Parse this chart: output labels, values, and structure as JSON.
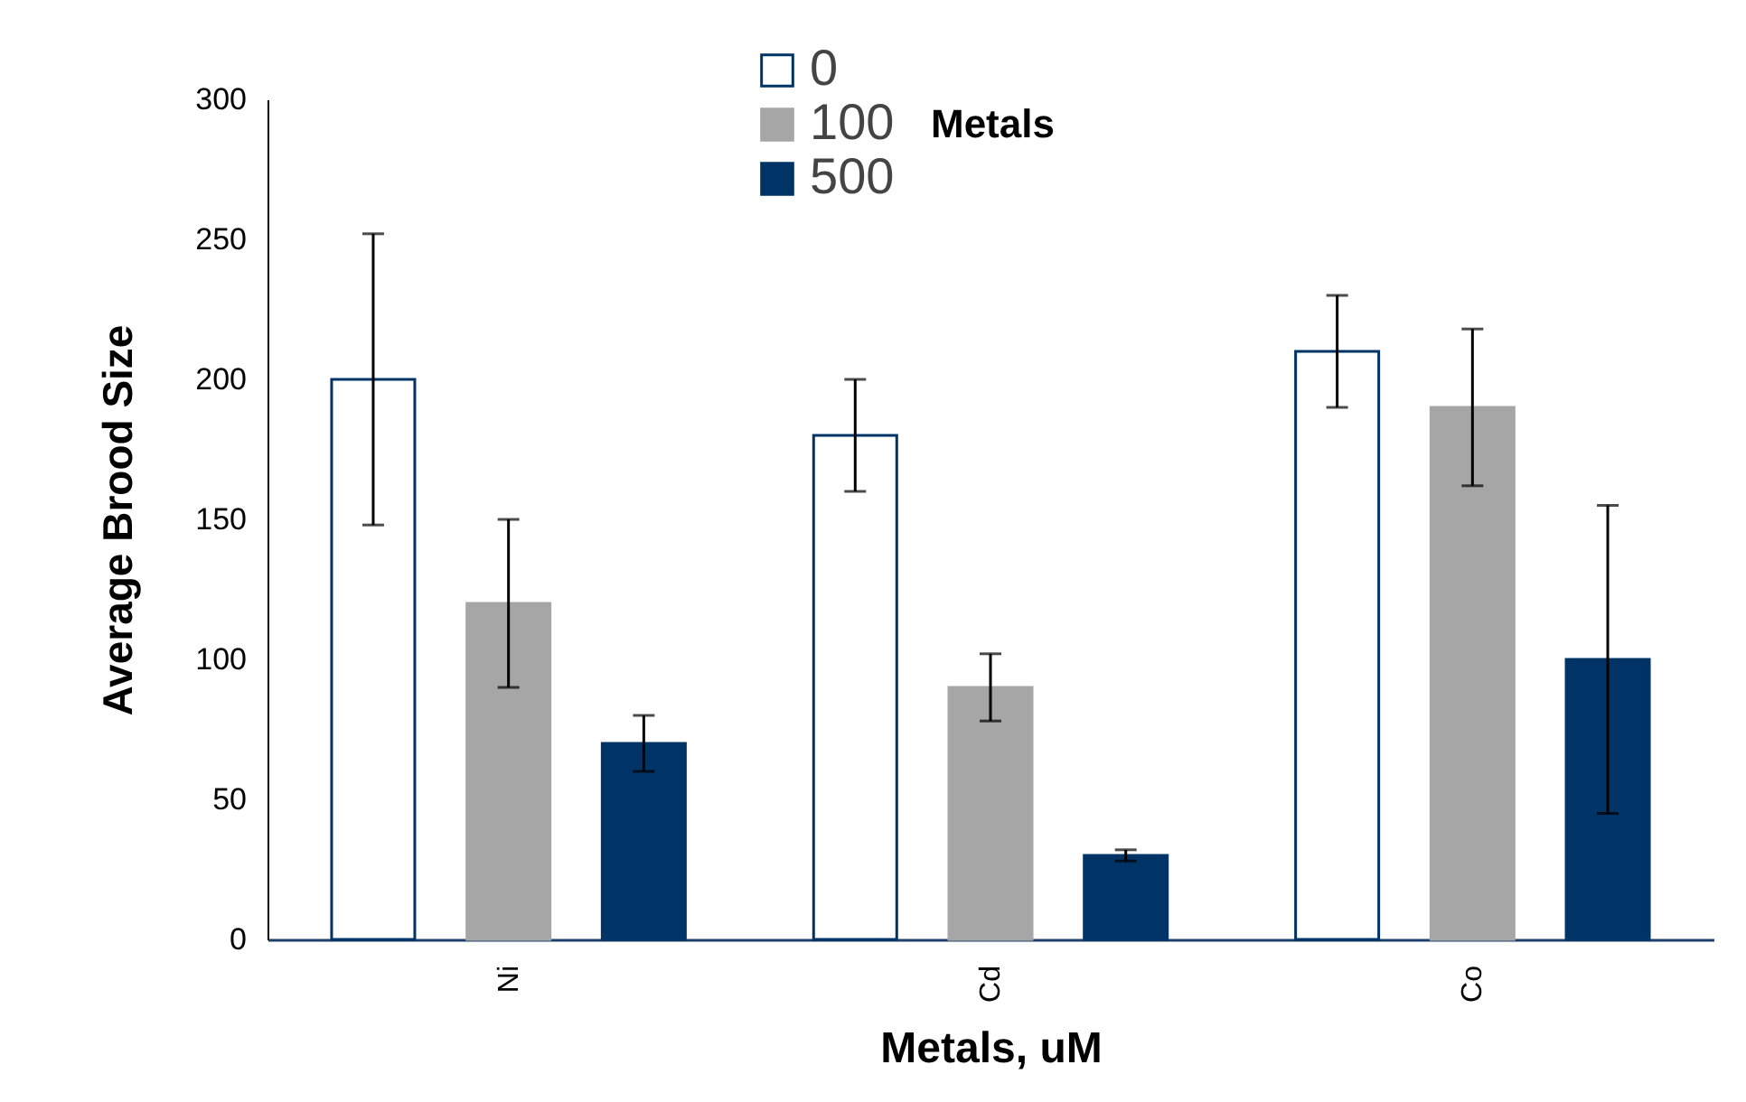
{
  "chart_data": {
    "type": "bar",
    "xlabel": "Metals, uM",
    "ylabel": "Average Brood Size",
    "legend_title": "Metals",
    "categories": [
      "Ni",
      "Cd",
      "Co"
    ],
    "series": [
      {
        "name": "0",
        "color": "#ffffff",
        "values": [
          200,
          180,
          210
        ],
        "errors": [
          52,
          20,
          20
        ]
      },
      {
        "name": "100",
        "color": "#a6a6a6",
        "values": [
          120,
          90,
          190
        ],
        "errors": [
          30,
          12,
          28
        ]
      },
      {
        "name": "500",
        "color": "#003366",
        "values": [
          70,
          30,
          100
        ],
        "errors": [
          10,
          2,
          55
        ]
      }
    ],
    "ylim": [
      0,
      300
    ],
    "yticks": [
      0,
      50,
      100,
      150,
      200,
      250,
      300
    ],
    "grid": false,
    "legend": "top"
  }
}
